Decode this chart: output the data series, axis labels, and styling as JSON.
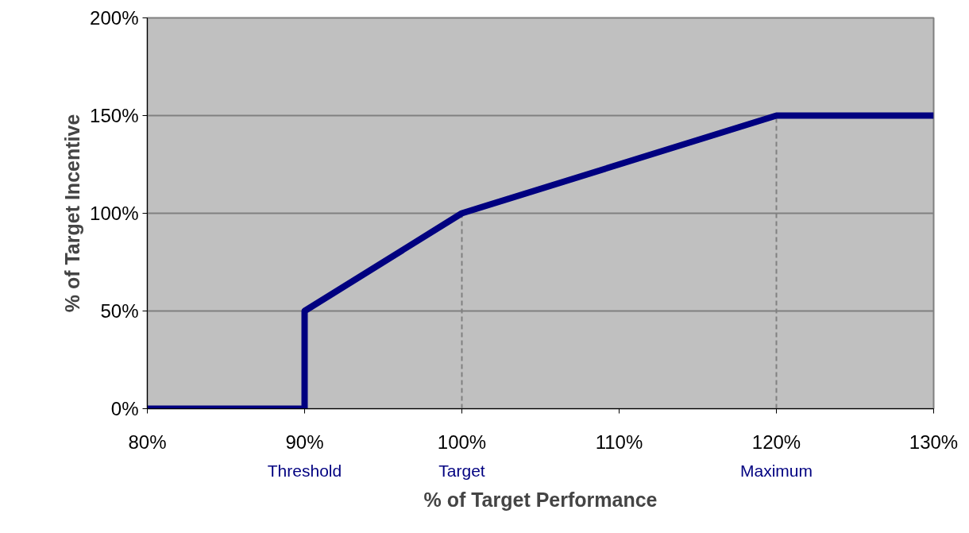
{
  "chart_data": {
    "type": "line",
    "xlabel": "% of Target Performance",
    "ylabel": "% of Target Incentive",
    "x": [
      80,
      90,
      90,
      100,
      120,
      130
    ],
    "series": [
      {
        "color": "#000080",
        "values": [
          0,
          0,
          50,
          100,
          150,
          150
        ]
      }
    ],
    "xlim": [
      80,
      130
    ],
    "ylim": [
      0,
      200
    ],
    "xticks": [
      {
        "value": 80,
        "label": "80%"
      },
      {
        "value": 90,
        "label": "90%"
      },
      {
        "value": 100,
        "label": "100%"
      },
      {
        "value": 110,
        "label": "110%"
      },
      {
        "value": 120,
        "label": "120%"
      },
      {
        "value": 130,
        "label": "130%"
      }
    ],
    "yticks": [
      {
        "value": 0,
        "label": "0%"
      },
      {
        "value": 50,
        "label": "50%"
      },
      {
        "value": 100,
        "label": "100%"
      },
      {
        "value": 150,
        "label": "150%"
      },
      {
        "value": 200,
        "label": "200%"
      }
    ],
    "grid": "y",
    "marker": "none",
    "line_style": "solid",
    "ref_lines": [
      {
        "axis": "x",
        "value": 100,
        "color": "#808080",
        "line_style": "dashed"
      },
      {
        "axis": "x",
        "value": 120,
        "color": "#808080",
        "line_style": "dashed"
      }
    ],
    "annotations": [
      "Threshold",
      "Target",
      "Maximum"
    ]
  }
}
